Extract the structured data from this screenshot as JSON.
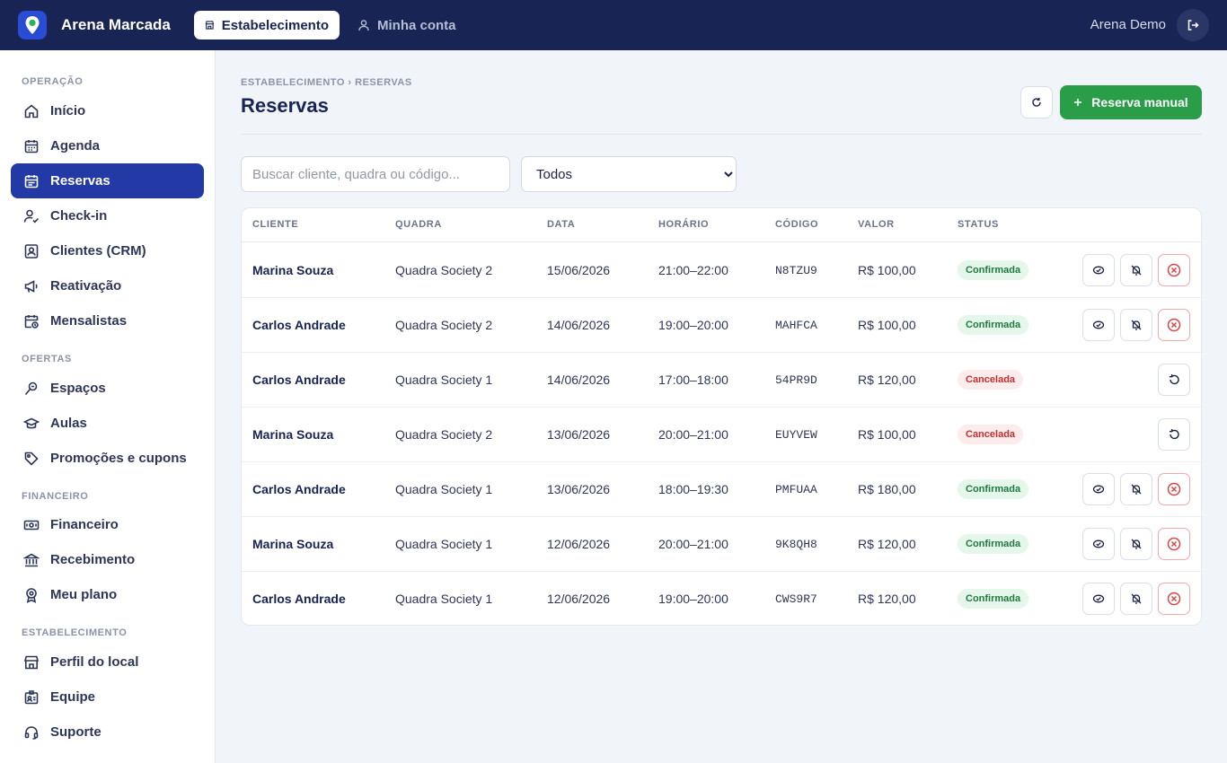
{
  "app": {
    "name": "Arena Marcada"
  },
  "topnav": {
    "tabs": [
      {
        "label": "Estabelecimento",
        "icon": "store-icon",
        "active": true
      },
      {
        "label": "Minha conta",
        "icon": "user-icon",
        "active": false
      }
    ],
    "user_name": "Arena Demo"
  },
  "sidebar": {
    "sections": [
      {
        "title": "OPERAÇÃO",
        "items": [
          {
            "label": "Início",
            "icon": "home-icon"
          },
          {
            "label": "Agenda",
            "icon": "calendar-icon"
          },
          {
            "label": "Reservas",
            "icon": "calendar-list-icon",
            "active": true
          },
          {
            "label": "Check-in",
            "icon": "user-check-icon"
          },
          {
            "label": "Clientes (CRM)",
            "icon": "contacts-icon"
          },
          {
            "label": "Reativação",
            "icon": "megaphone-icon"
          },
          {
            "label": "Mensalistas",
            "icon": "calendar-clock-icon"
          }
        ]
      },
      {
        "title": "OFERTAS",
        "items": [
          {
            "label": "Espaços",
            "icon": "field-icon"
          },
          {
            "label": "Aulas",
            "icon": "graduation-cap-icon"
          },
          {
            "label": "Promoções e cupons",
            "icon": "tag-icon"
          }
        ]
      },
      {
        "title": "FINANCEIRO",
        "items": [
          {
            "label": "Financeiro",
            "icon": "banknote-icon"
          },
          {
            "label": "Recebimento",
            "icon": "bank-icon"
          },
          {
            "label": "Meu plano",
            "icon": "award-icon"
          }
        ]
      },
      {
        "title": "ESTABELECIMENTO",
        "items": [
          {
            "label": "Perfil do local",
            "icon": "store-icon"
          },
          {
            "label": "Equipe",
            "icon": "id-badge-icon"
          },
          {
            "label": "Suporte",
            "icon": "headset-icon"
          }
        ]
      }
    ]
  },
  "page": {
    "breadcrumb": "ESTABELECIMENTO › RESERVAS",
    "title": "Reservas",
    "primary_button": "Reserva manual",
    "search_placeholder": "Buscar cliente, quadra ou código...",
    "status_filter": {
      "selected": "Todos"
    }
  },
  "table": {
    "headers": [
      "CLIENTE",
      "QUADRA",
      "DATA",
      "HORÁRIO",
      "CÓDIGO",
      "VALOR",
      "STATUS"
    ],
    "rows": [
      {
        "cliente": "Marina Souza",
        "quadra": "Quadra Society 2",
        "data": "15/06/2026",
        "horario": "21:00–22:00",
        "codigo": "N8TZU9",
        "valor": "R$ 100,00",
        "status": "Confirmada"
      },
      {
        "cliente": "Carlos Andrade",
        "quadra": "Quadra Society 2",
        "data": "14/06/2026",
        "horario": "19:00–20:00",
        "codigo": "MAHFCA",
        "valor": "R$ 100,00",
        "status": "Confirmada"
      },
      {
        "cliente": "Carlos Andrade",
        "quadra": "Quadra Society 1",
        "data": "14/06/2026",
        "horario": "17:00–18:00",
        "codigo": "54PR9D",
        "valor": "R$ 120,00",
        "status": "Cancelada"
      },
      {
        "cliente": "Marina Souza",
        "quadra": "Quadra Society 2",
        "data": "13/06/2026",
        "horario": "20:00–21:00",
        "codigo": "EUYVEW",
        "valor": "R$ 100,00",
        "status": "Cancelada"
      },
      {
        "cliente": "Carlos Andrade",
        "quadra": "Quadra Society 1",
        "data": "13/06/2026",
        "horario": "18:00–19:30",
        "codigo": "PMFUAA",
        "valor": "R$ 180,00",
        "status": "Confirmada"
      },
      {
        "cliente": "Marina Souza",
        "quadra": "Quadra Society 1",
        "data": "12/06/2026",
        "horario": "20:00–21:00",
        "codigo": "9K8QH8",
        "valor": "R$ 120,00",
        "status": "Confirmada"
      },
      {
        "cliente": "Carlos Andrade",
        "quadra": "Quadra Society 1",
        "data": "12/06/2026",
        "horario": "19:00–20:00",
        "codigo": "CWS9R7",
        "valor": "R$ 120,00",
        "status": "Confirmada"
      }
    ]
  },
  "colors": {
    "topbar": "#172454",
    "accent": "#2339a6",
    "success": "#2a9d48",
    "danger": "#d64545"
  }
}
